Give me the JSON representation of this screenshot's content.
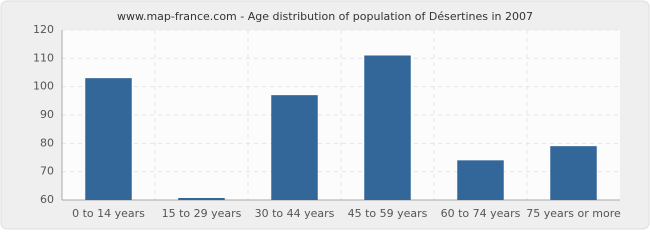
{
  "chart_data": {
    "type": "bar",
    "title": "www.map-france.com - Age distribution of population of Désertines in 2007",
    "categories": [
      "0 to 14 years",
      "15 to 29 years",
      "30 to 44 years",
      "45 to 59 years",
      "60 to 74 years",
      "75 years or more"
    ],
    "values": [
      103,
      60,
      97,
      111,
      74,
      79
    ],
    "color": "#336699",
    "ylim": [
      60,
      120
    ],
    "yticks": [
      60,
      70,
      80,
      90,
      100,
      110,
      120
    ],
    "grid": true
  }
}
